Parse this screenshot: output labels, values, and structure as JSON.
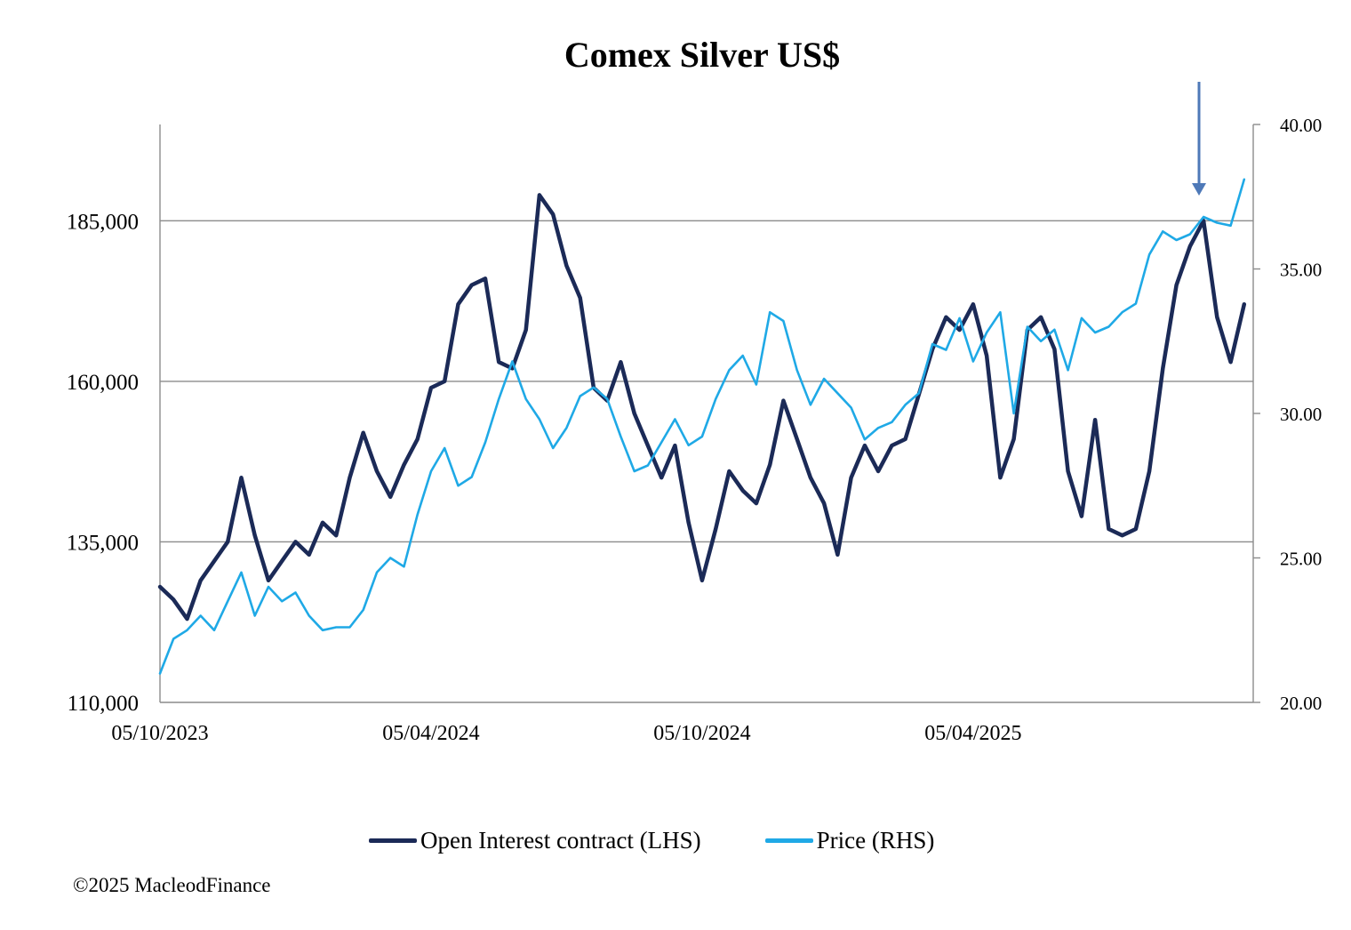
{
  "chart_data": {
    "type": "line",
    "title": "Comex Silver US$",
    "x_ticks": [
      "05/10/2023",
      "05/04/2024",
      "05/10/2024",
      "05/04/2025"
    ],
    "y_left": {
      "ylim": [
        110000,
        200000
      ],
      "ticks": [
        110000,
        135000,
        160000,
        185000
      ],
      "tick_labels": [
        "110,000",
        "135,000",
        "160,000",
        "185,000"
      ]
    },
    "y_right": {
      "ylim": [
        20,
        40
      ],
      "ticks": [
        20,
        25,
        30,
        35,
        40
      ],
      "tick_labels": [
        "20.00",
        "25.00",
        "30.00",
        "35.00",
        "40.00"
      ]
    },
    "x_range": [
      0,
      24.2
    ],
    "series": [
      {
        "name": "Open Interest contract (LHS)",
        "axis": "left",
        "color": "#1b2a57",
        "x": [
          0,
          0.3,
          0.6,
          0.9,
          1.2,
          1.5,
          1.8,
          2.1,
          2.4,
          2.7,
          3.0,
          3.3,
          3.6,
          3.9,
          4.2,
          4.5,
          4.8,
          5.1,
          5.4,
          5.7,
          6.0,
          6.3,
          6.6,
          6.9,
          7.2,
          7.5,
          7.8,
          8.1,
          8.4,
          8.7,
          9.0,
          9.3,
          9.6,
          9.9,
          10.2,
          10.5,
          10.8,
          11.1,
          11.4,
          11.7,
          12.0,
          12.3,
          12.6,
          12.9,
          13.2,
          13.5,
          13.8,
          14.1,
          14.4,
          14.7,
          15.0,
          15.3,
          15.6,
          15.9,
          16.2,
          16.5,
          16.8,
          17.1,
          17.4,
          17.7,
          18.0,
          18.3,
          18.6,
          18.9,
          19.2,
          19.5,
          19.8,
          20.1,
          20.4,
          20.7,
          21.0,
          21.3,
          21.6,
          21.9,
          22.2,
          22.5,
          22.8,
          23.1,
          23.4,
          23.7,
          24.0
        ],
        "values": [
          128000,
          126000,
          123000,
          129000,
          132000,
          135000,
          145000,
          136000,
          129000,
          132000,
          135000,
          133000,
          138000,
          136000,
          145000,
          152000,
          146000,
          142000,
          147000,
          151000,
          159000,
          160000,
          172000,
          175000,
          176000,
          163000,
          162000,
          168000,
          189000,
          186000,
          178000,
          173000,
          159000,
          157000,
          163000,
          155000,
          150000,
          145000,
          150000,
          138000,
          129000,
          137000,
          146000,
          143000,
          141000,
          147000,
          157000,
          151000,
          145000,
          141000,
          133000,
          145000,
          150000,
          146000,
          150000,
          151000,
          158000,
          165000,
          170000,
          168000,
          172000,
          164000,
          145000,
          151000,
          168000,
          170000,
          165000,
          146000,
          139000,
          154000,
          137000,
          136000,
          137000,
          146000,
          162000,
          175000,
          181000,
          185000,
          170000,
          163000,
          172000
        ]
      },
      {
        "name": "Price (RHS)",
        "axis": "right",
        "color": "#1fa9e6",
        "x": [
          0,
          0.3,
          0.6,
          0.9,
          1.2,
          1.5,
          1.8,
          2.1,
          2.4,
          2.7,
          3.0,
          3.3,
          3.6,
          3.9,
          4.2,
          4.5,
          4.8,
          5.1,
          5.4,
          5.7,
          6.0,
          6.3,
          6.6,
          6.9,
          7.2,
          7.5,
          7.8,
          8.1,
          8.4,
          8.7,
          9.0,
          9.3,
          9.6,
          9.9,
          10.2,
          10.5,
          10.8,
          11.1,
          11.4,
          11.7,
          12.0,
          12.3,
          12.6,
          12.9,
          13.2,
          13.5,
          13.8,
          14.1,
          14.4,
          14.7,
          15.0,
          15.3,
          15.6,
          15.9,
          16.2,
          16.5,
          16.8,
          17.1,
          17.4,
          17.7,
          18.0,
          18.3,
          18.6,
          18.9,
          19.2,
          19.5,
          19.8,
          20.1,
          20.4,
          20.7,
          21.0,
          21.3,
          21.6,
          21.9,
          22.2,
          22.5,
          22.8,
          23.1,
          23.4,
          23.7,
          24.0
        ],
        "values": [
          21.0,
          22.2,
          22.5,
          23.0,
          22.5,
          23.5,
          24.5,
          23.0,
          24.0,
          23.5,
          23.8,
          23.0,
          22.5,
          22.6,
          22.6,
          23.2,
          24.5,
          25.0,
          24.7,
          26.5,
          28.0,
          28.8,
          27.5,
          27.8,
          29.0,
          30.5,
          31.8,
          30.5,
          29.8,
          28.8,
          29.5,
          30.6,
          30.9,
          30.5,
          29.2,
          28.0,
          28.2,
          29.0,
          29.8,
          28.9,
          29.2,
          30.5,
          31.5,
          32.0,
          31.0,
          33.5,
          33.2,
          31.5,
          30.3,
          31.2,
          30.7,
          30.2,
          29.1,
          29.5,
          29.7,
          30.3,
          30.7,
          32.4,
          32.2,
          33.3,
          31.8,
          32.8,
          33.5,
          30.0,
          33.0,
          32.5,
          32.9,
          31.5,
          33.3,
          32.8,
          33.0,
          33.5,
          33.8,
          35.5,
          36.3,
          36.0,
          36.2,
          36.8,
          36.6,
          36.5,
          38.1
        ]
      }
    ],
    "annotations": [
      {
        "type": "arrow",
        "direction": "down",
        "at_x": 23.0
      }
    ],
    "grid": "horizontal"
  },
  "legend": {
    "items": [
      {
        "label": "Open Interest contract (LHS)",
        "color": "#1b2a57"
      },
      {
        "label": "Price (RHS)",
        "color": "#1fa9e6"
      }
    ]
  },
  "copyright": "©2025 MacleodFinance"
}
